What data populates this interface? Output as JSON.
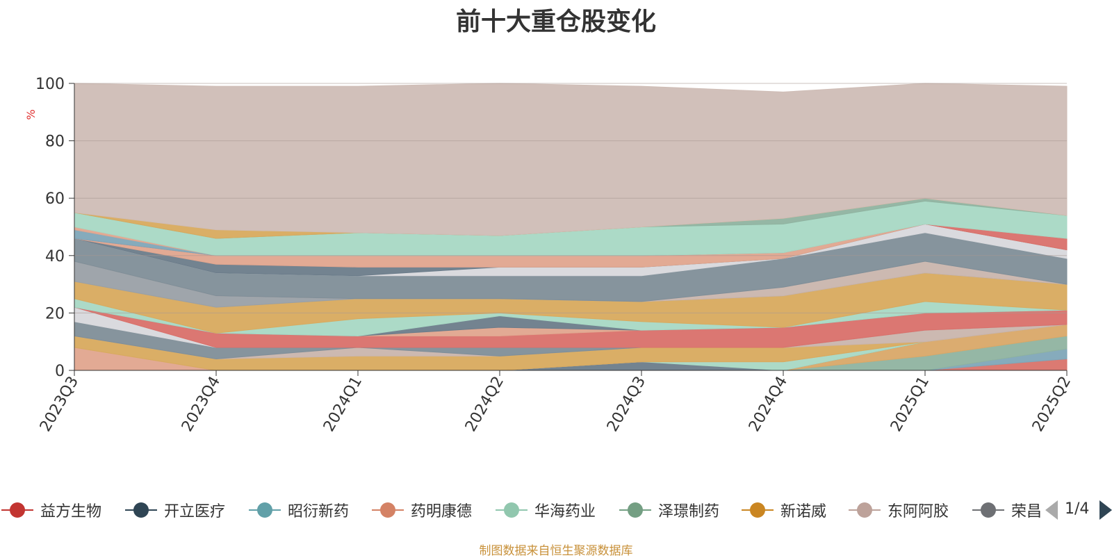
{
  "chart_data": {
    "type": "area",
    "stacked": true,
    "title": "前十大重仓股变化",
    "ylabel": "%",
    "ylim": [
      0,
      100
    ],
    "yticks": [
      "0",
      "20",
      "40",
      "60",
      "80",
      "100"
    ],
    "grid": true,
    "categories": [
      "2023Q3",
      "2023Q4",
      "2024Q1",
      "2024Q2",
      "2024Q3",
      "2024Q4",
      "2025Q1",
      "2025Q2"
    ],
    "series": [
      {
        "color": "#d9736a",
        "values": [
          0,
          0,
          0,
          0,
          0,
          0,
          0,
          4
        ]
      },
      {
        "color": "#7fa6b8",
        "values": [
          0,
          0,
          0,
          0,
          0,
          0,
          0,
          3.5
        ]
      },
      {
        "color": "#8fb3a0",
        "values": [
          0,
          0,
          0,
          0,
          0,
          0,
          5,
          4.5
        ]
      },
      {
        "color": "#d9a868",
        "values": [
          0,
          0,
          0,
          0,
          0,
          0,
          5,
          4
        ]
      },
      {
        "color": "#6b7c8a",
        "values": [
          0,
          0,
          0,
          0,
          3,
          0,
          0,
          0
        ]
      },
      {
        "color": "#a8d8c4",
        "values": [
          0,
          0,
          0,
          0,
          0,
          3,
          0,
          0
        ]
      },
      {
        "color": "#e0a58e",
        "values": [
          8,
          0,
          0,
          0,
          0,
          0,
          0,
          0
        ]
      },
      {
        "color": "#d8aa5e",
        "values": [
          4,
          4,
          5,
          5,
          5,
          5,
          0,
          0
        ]
      },
      {
        "color": "#c9b5ad",
        "values": [
          0,
          0,
          3,
          0,
          0,
          0,
          4,
          0
        ]
      },
      {
        "color": "#7f8e98",
        "values": [
          5,
          4,
          0,
          3,
          0,
          0,
          0,
          0
        ]
      },
      {
        "color": "#d8d8dc",
        "values": [
          5,
          0,
          0,
          0,
          0,
          0,
          0,
          0
        ]
      },
      {
        "color": "#d9706a",
        "values": [
          0,
          5,
          4,
          4,
          6,
          7,
          6,
          5
        ]
      },
      {
        "color": "#e0a58e",
        "values": [
          0,
          0,
          0,
          3,
          0,
          0,
          0,
          0
        ]
      },
      {
        "color": "#6b7c8a",
        "values": [
          0,
          0,
          0,
          4,
          0,
          0,
          0,
          0
        ]
      },
      {
        "color": "#a8d8c4",
        "values": [
          3,
          0,
          6,
          1,
          3,
          0,
          4,
          0
        ]
      },
      {
        "color": "#d8aa5e",
        "values": [
          6,
          9,
          7,
          5,
          7,
          11,
          10,
          9
        ]
      },
      {
        "color": "#9aa0a6",
        "values": [
          7,
          4,
          0,
          0,
          0,
          0,
          0,
          0
        ]
      },
      {
        "color": "#c9b5ad",
        "values": [
          0,
          0,
          0,
          0,
          0,
          3,
          4,
          0
        ]
      },
      {
        "color": "#7f8e98",
        "values": [
          8,
          8,
          8,
          8,
          9,
          10,
          10,
          9
        ]
      },
      {
        "color": "#d8d8dc",
        "values": [
          0,
          0,
          0,
          3,
          3,
          0,
          3,
          3
        ]
      },
      {
        "color": "#6b7c8a",
        "values": [
          0,
          3,
          3,
          0,
          0,
          0,
          0,
          0
        ]
      },
      {
        "color": "#e0a58e",
        "values": [
          0,
          3,
          4,
          4,
          4,
          2,
          0,
          0
        ]
      },
      {
        "color": "#d9706a",
        "values": [
          0,
          0,
          0,
          0,
          0,
          0,
          0,
          4
        ]
      },
      {
        "color": "#7fa6b8",
        "values": [
          3,
          0,
          0,
          0,
          0,
          0,
          0,
          0
        ]
      },
      {
        "color": "#e0a58e",
        "values": [
          1,
          0,
          0,
          0,
          0,
          0,
          0,
          0
        ]
      },
      {
        "color": "#a8d8c4",
        "values": [
          5,
          6,
          8,
          7,
          10,
          10,
          8,
          8
        ]
      },
      {
        "color": "#8fb3a0",
        "values": [
          0,
          0,
          0,
          0,
          0,
          2,
          1,
          0
        ]
      },
      {
        "color": "#d8aa5e",
        "values": [
          0,
          3,
          0,
          0,
          0,
          0,
          0,
          0
        ]
      },
      {
        "color": "#cfbdb6",
        "values": [
          45,
          50,
          51,
          53,
          49,
          44,
          40,
          45
        ]
      }
    ]
  },
  "legend": {
    "items": [
      {
        "label": "益方生物",
        "color": "#c23531"
      },
      {
        "label": "开立医疗",
        "color": "#2f4554"
      },
      {
        "label": "昭衍新药",
        "color": "#61a0a8"
      },
      {
        "label": "药明康德",
        "color": "#d48265"
      },
      {
        "label": "华海药业",
        "color": "#91c7ae"
      },
      {
        "label": "泽璟制药",
        "color": "#749f83"
      },
      {
        "label": "新诺威",
        "color": "#ca8622"
      },
      {
        "label": "东阿阿胶",
        "color": "#bda29a"
      },
      {
        "label": "荣昌生物",
        "color": "#6e7074"
      }
    ],
    "page_indicator": "1/4"
  },
  "footer": {
    "source": "制图数据来自恒生聚源数据库"
  }
}
